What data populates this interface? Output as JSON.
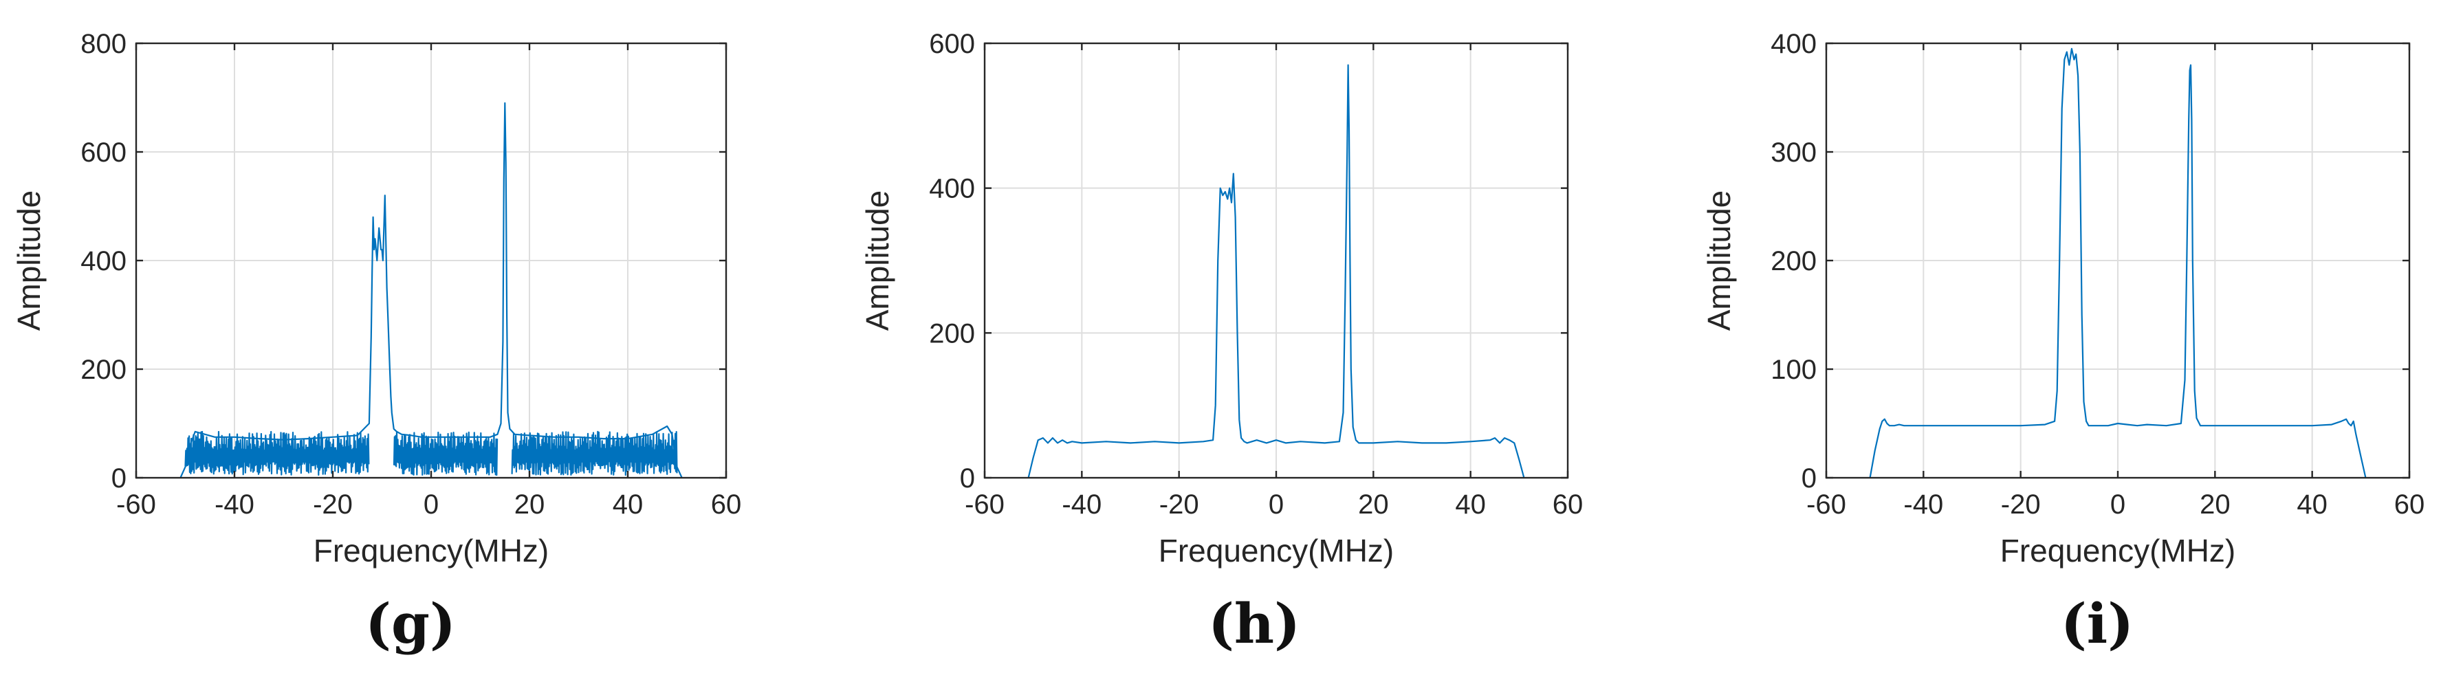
{
  "chart_data": [
    {
      "type": "line",
      "panel_label": "(g)",
      "xlabel": "Frequency(MHz)",
      "ylabel": "Amplitude",
      "xlim": [
        -60,
        60
      ],
      "ylim": [
        0,
        800
      ],
      "xticks": [
        -60,
        -40,
        -20,
        0,
        20,
        40,
        60
      ],
      "yticks": [
        0,
        200,
        400,
        600,
        800
      ],
      "grid": true,
      "color": "#0072BD",
      "noise": {
        "band": [
          -50,
          50
        ],
        "low": 5,
        "high": 85
      },
      "series": [
        {
          "x": [
            -51,
            -50,
            -49,
            -48,
            -46,
            -44,
            -40,
            -35,
            -30,
            -25,
            -20,
            -15,
            -12.6,
            -12.2,
            -12,
            -11.8,
            -11.6,
            -11.4,
            -11,
            -10.6,
            -10.2,
            -10,
            -9.8,
            -9.4,
            -9,
            -8.8,
            -8.6,
            -8.4,
            -8.2,
            -8,
            -7.6,
            -7,
            -6,
            -4,
            -2,
            0,
            2,
            5,
            8,
            10,
            12,
            13.5,
            14.2,
            14.6,
            14.8,
            15,
            15.2,
            15.4,
            15.6,
            16,
            17,
            20,
            25,
            30,
            35,
            40,
            45,
            48,
            49,
            50,
            51
          ],
          "y": [
            0,
            20,
            60,
            85,
            80,
            75,
            75,
            72,
            70,
            72,
            75,
            78,
            100,
            260,
            380,
            480,
            420,
            440,
            400,
            460,
            420,
            420,
            400,
            520,
            350,
            300,
            250,
            200,
            150,
            120,
            90,
            85,
            80,
            78,
            75,
            75,
            75,
            75,
            75,
            75,
            75,
            80,
            100,
            250,
            550,
            690,
            580,
            300,
            120,
            90,
            80,
            78,
            75,
            75,
            72,
            72,
            80,
            95,
            80,
            20,
            0
          ]
        }
      ]
    },
    {
      "type": "line",
      "panel_label": "(h)",
      "xlabel": "Frequency(MHz)",
      "ylabel": "Amplitude",
      "xlim": [
        -60,
        60
      ],
      "ylim": [
        0,
        600
      ],
      "xticks": [
        -60,
        -40,
        -20,
        0,
        20,
        40,
        60
      ],
      "yticks": [
        0,
        200,
        400,
        600
      ],
      "grid": true,
      "color": "#0072BD",
      "series": [
        {
          "x": [
            -51,
            -50,
            -49,
            -48,
            -47,
            -46,
            -45,
            -44,
            -43,
            -42,
            -40,
            -35,
            -30,
            -25,
            -20,
            -15,
            -13,
            -12.5,
            -12,
            -11.5,
            -11,
            -10.5,
            -10,
            -9.6,
            -9.2,
            -8.8,
            -8.4,
            -8,
            -7.6,
            -7.2,
            -6.6,
            -6,
            -4,
            -2,
            0,
            2,
            5,
            10,
            13,
            13.8,
            14.2,
            14.6,
            14.8,
            15,
            15.2,
            15.4,
            15.8,
            16.4,
            17,
            20,
            25,
            30,
            35,
            40,
            44,
            45,
            46,
            47,
            48,
            49,
            50,
            51
          ],
          "y": [
            0,
            28,
            52,
            55,
            48,
            55,
            48,
            52,
            48,
            50,
            48,
            50,
            48,
            50,
            48,
            50,
            52,
            100,
            300,
            400,
            390,
            395,
            385,
            400,
            380,
            420,
            360,
            200,
            80,
            55,
            50,
            48,
            52,
            48,
            52,
            48,
            50,
            48,
            50,
            90,
            250,
            450,
            570,
            480,
            300,
            150,
            70,
            52,
            48,
            48,
            50,
            48,
            48,
            50,
            52,
            55,
            48,
            55,
            52,
            48,
            25,
            0
          ]
        }
      ]
    },
    {
      "type": "line",
      "panel_label": "(i)",
      "xlabel": "Frequency(MHz)",
      "ylabel": "Amplitude",
      "xlim": [
        -60,
        60
      ],
      "ylim": [
        0,
        400
      ],
      "xticks": [
        -60,
        -40,
        -20,
        0,
        20,
        40,
        60
      ],
      "yticks": [
        0,
        100,
        200,
        300,
        400
      ],
      "grid": true,
      "color": "#0072BD",
      "series": [
        {
          "x": [
            -51,
            -50,
            -49,
            -48.5,
            -48,
            -47.5,
            -47,
            -46,
            -45,
            -44,
            -40,
            -35,
            -30,
            -25,
            -20,
            -15,
            -13,
            -12.5,
            -12,
            -11.5,
            -11,
            -10.5,
            -10,
            -9.5,
            -9,
            -8.6,
            -8.2,
            -7.8,
            -7.4,
            -7,
            -6.5,
            -6,
            -4,
            -2,
            0,
            2,
            4,
            6,
            10,
            13,
            13.8,
            14.2,
            14.6,
            14.8,
            15,
            15.2,
            15.4,
            15.8,
            16.2,
            17,
            20,
            25,
            30,
            35,
            40,
            44,
            46,
            47,
            47.5,
            48,
            48.5,
            49,
            50,
            51
          ],
          "y": [
            0,
            25,
            45,
            52,
            54,
            50,
            48,
            48,
            49,
            48,
            48,
            48,
            48,
            48,
            48,
            49,
            52,
            80,
            200,
            340,
            385,
            392,
            380,
            395,
            385,
            390,
            370,
            300,
            150,
            70,
            52,
            48,
            48,
            48,
            50,
            49,
            48,
            49,
            48,
            50,
            90,
            200,
            330,
            375,
            380,
            330,
            200,
            80,
            55,
            48,
            48,
            48,
            48,
            48,
            48,
            49,
            52,
            54,
            50,
            48,
            52,
            40,
            20,
            0
          ]
        }
      ]
    }
  ]
}
